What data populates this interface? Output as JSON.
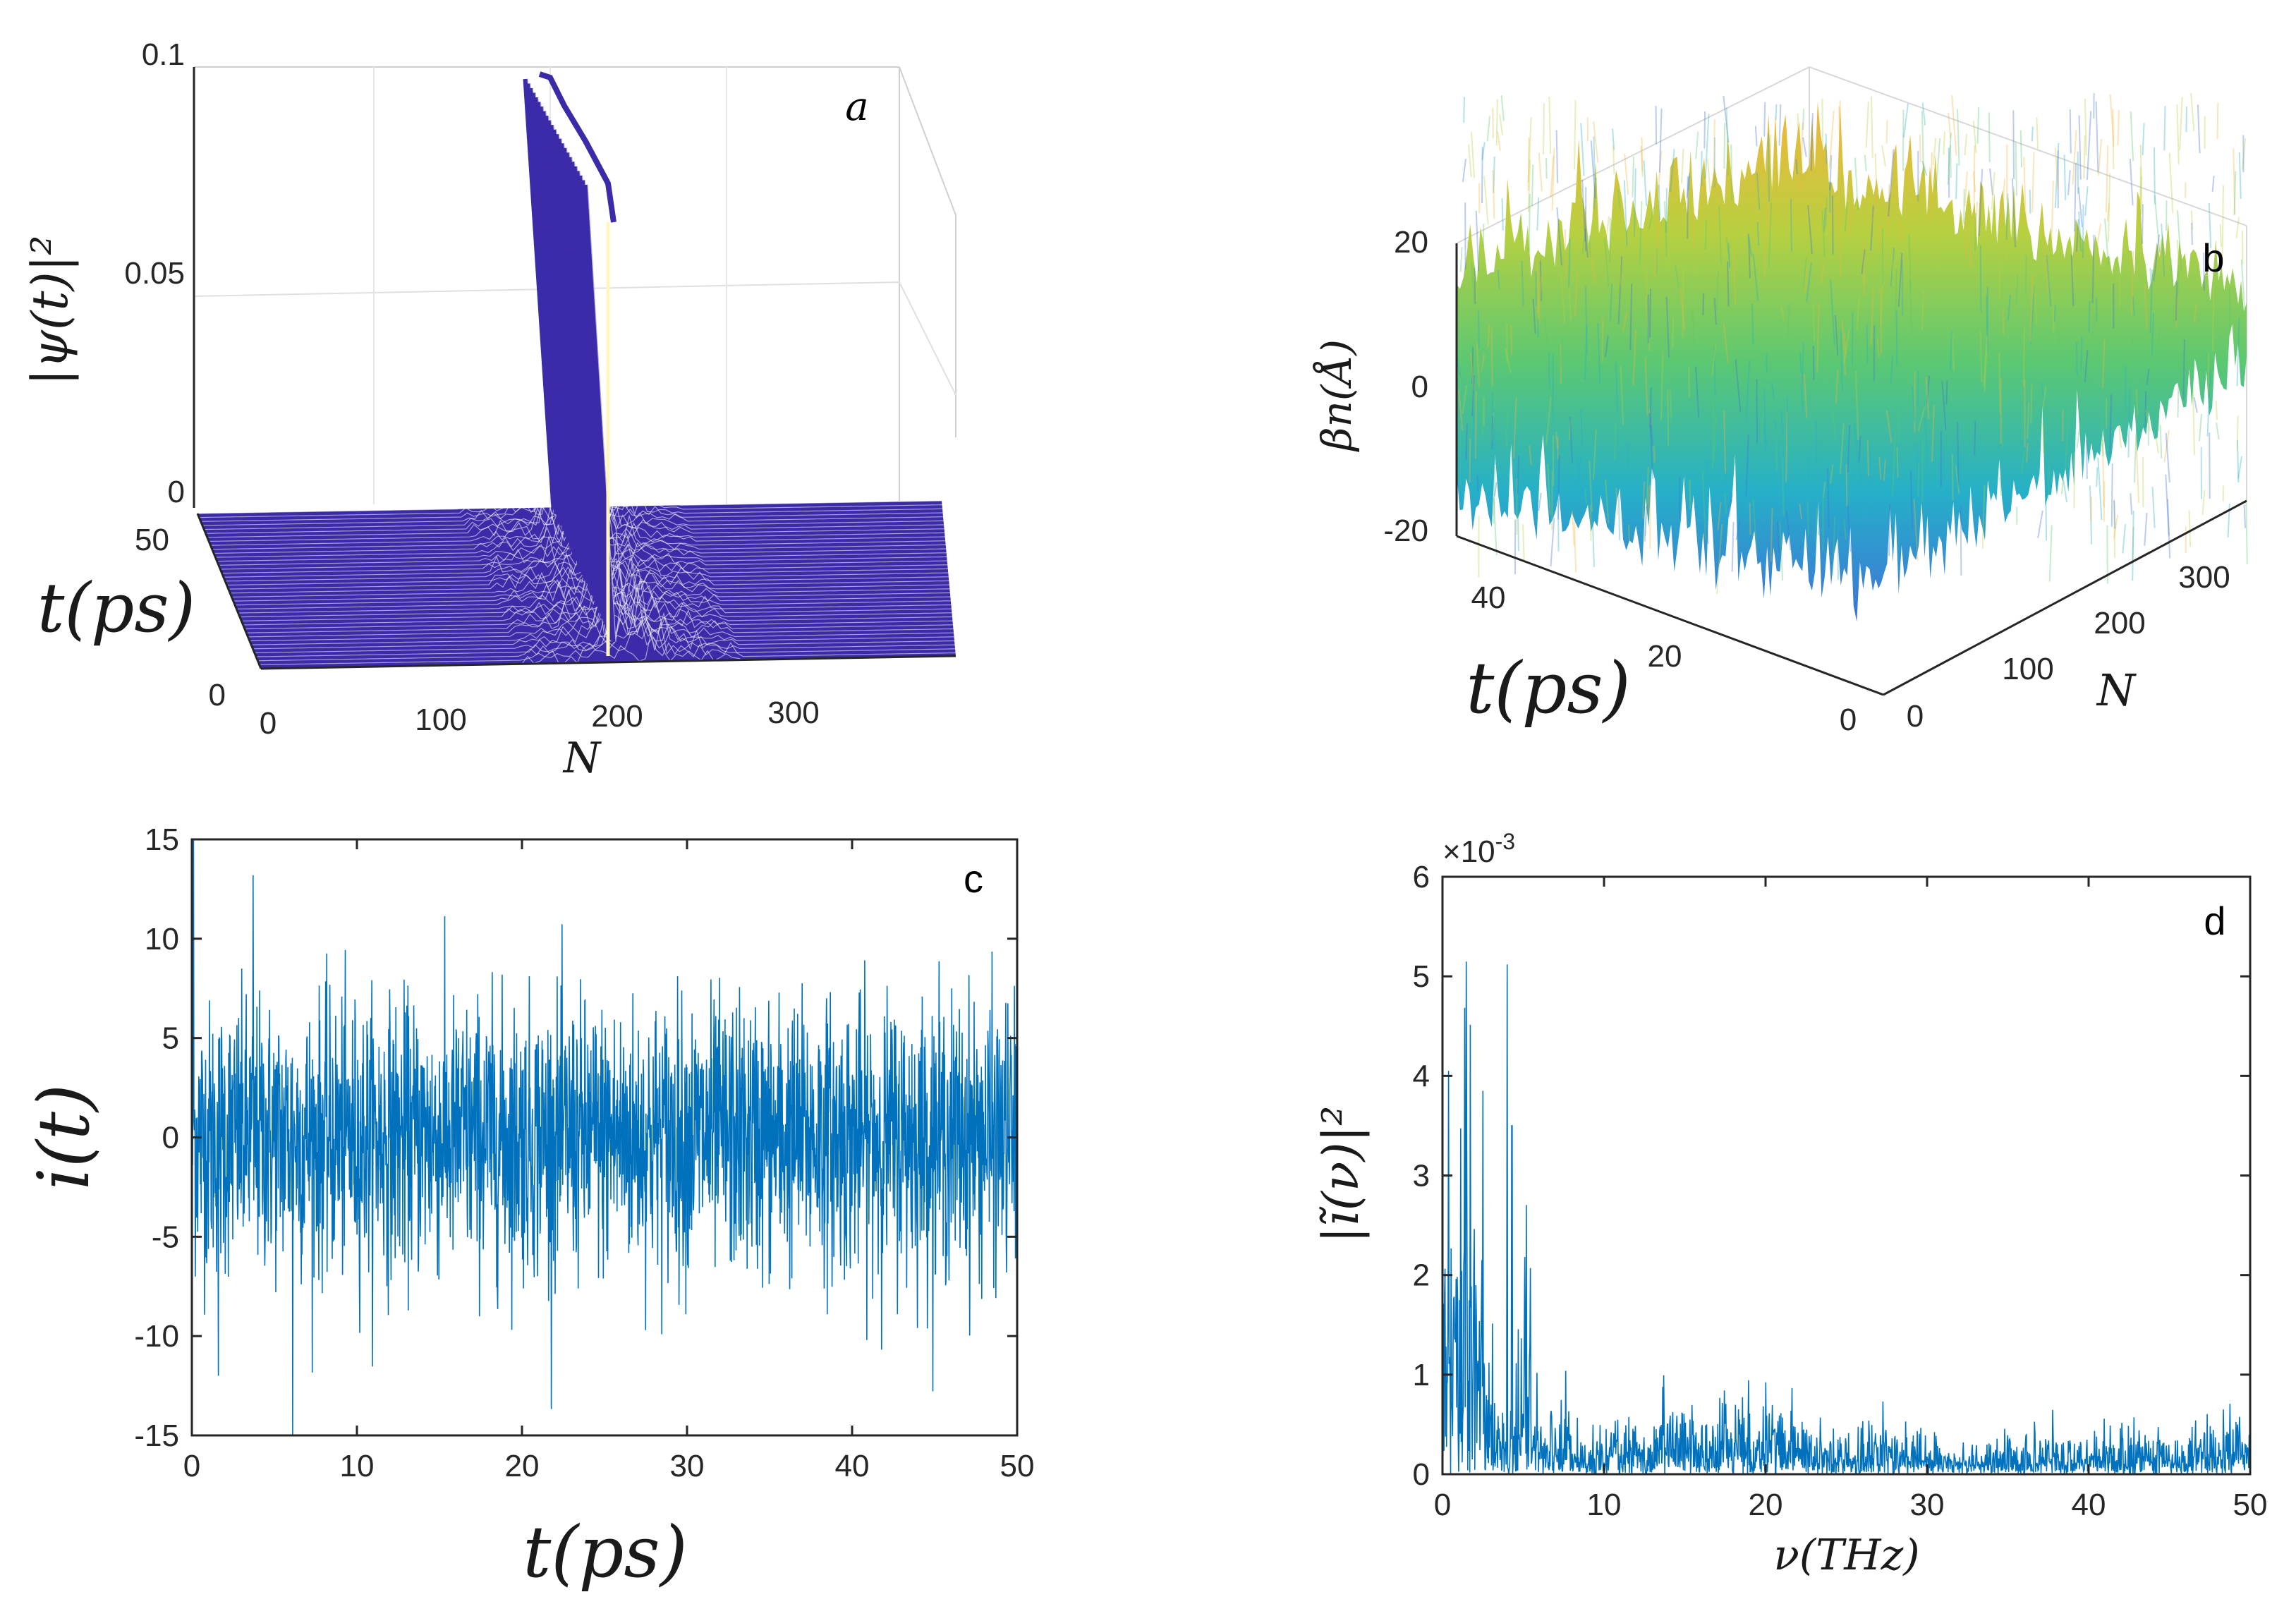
{
  "chart_data": [
    {
      "panel": "a",
      "type": "surface3d",
      "title": "",
      "zlabel": "|ψ(t)|²",
      "xlabel": "N",
      "ylabel": "t(ps)",
      "panel_label": "a",
      "z_ticks": [
        "0",
        "0.05",
        "0.1"
      ],
      "x_ticks": [
        "0",
        "100",
        "200",
        "300"
      ],
      "y_ticks": [
        "0",
        "50"
      ],
      "xlim": [
        0,
        400
      ],
      "ylim": [
        0,
        50
      ],
      "zlim": [
        0,
        0.1
      ],
      "peak": {
        "N": 200,
        "max": 0.1,
        "spread_N": [
          140,
          280
        ]
      },
      "color": "#3b2ba8"
    },
    {
      "panel": "b",
      "type": "surface3d",
      "zlabel": "βn(Å)",
      "xlabel": "N",
      "ylabel": "t(ps)",
      "panel_label": "b",
      "z_ticks": [
        "-20",
        "0",
        "20"
      ],
      "x_ticks": [
        "0",
        "100",
        "200",
        "300"
      ],
      "y_ticks": [
        "0",
        "20",
        "40"
      ],
      "xlim": [
        0,
        380
      ],
      "ylim": [
        0,
        50
      ],
      "zlim": [
        -20,
        20
      ],
      "colormap": [
        "#3e72d8",
        "#26b0c8",
        "#5cc872",
        "#b8d040",
        "#f5b43a"
      ]
    },
    {
      "panel": "c",
      "type": "line",
      "xlabel": "t(ps)",
      "ylabel": "i(t)",
      "panel_label": "c",
      "xlim": [
        0,
        50
      ],
      "ylim": [
        -15,
        15
      ],
      "x_ticks": [
        "0",
        "10",
        "20",
        "30",
        "40",
        "50"
      ],
      "y_ticks": [
        "-15",
        "-10",
        "-5",
        "0",
        "5",
        "10",
        "15"
      ],
      "x_tick_values": [
        0,
        10,
        20,
        30,
        40,
        50
      ],
      "y_tick_values": [
        -15,
        -10,
        -5,
        0,
        5,
        10,
        15
      ],
      "noise_std": 3.4,
      "spikes": [
        {
          "t": 0.1,
          "v": 15
        },
        {
          "t": 3.7,
          "v": 13.2
        },
        {
          "t": 6.1,
          "v": -15
        },
        {
          "t": 1.6,
          "v": -12
        }
      ],
      "color": "#0072bd"
    },
    {
      "panel": "d",
      "type": "line",
      "xlabel": "ν(THz)",
      "ylabel": "|ĩ(ν)|²",
      "panel_label": "d",
      "exponent_label": "×10",
      "exponent_power": "-3",
      "xlim": [
        0,
        50
      ],
      "ylim": [
        0,
        6
      ],
      "x_ticks": [
        "0",
        "10",
        "20",
        "30",
        "40",
        "50"
      ],
      "y_ticks": [
        "0",
        "1",
        "2",
        "3",
        "4",
        "5",
        "6"
      ],
      "x_tick_values": [
        0,
        10,
        20,
        30,
        40,
        50
      ],
      "y_tick_values": [
        0,
        1,
        2,
        3,
        4,
        5,
        6
      ],
      "peaks": [
        {
          "nu": 2.5,
          "v": 3.85
        },
        {
          "nu": 4.0,
          "v": 5.12
        },
        {
          "nu": 4.3,
          "v": 3.5
        },
        {
          "nu": 1.5,
          "v": 3.2
        }
      ],
      "color": "#0072bd"
    }
  ]
}
